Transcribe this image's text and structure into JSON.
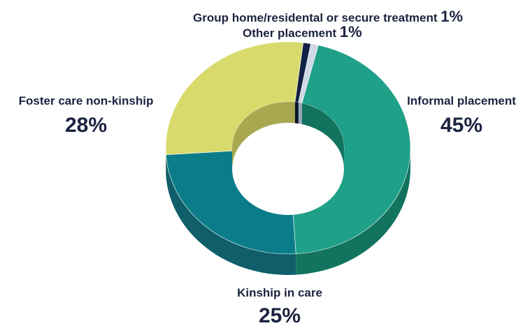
{
  "chart_data": {
    "type": "pie",
    "donut": true,
    "style_3d": true,
    "categories": [
      "Informal placement",
      "Kinship in care",
      "Foster care non-kinship",
      "Other placement",
      "Group home/residental or secure treatment"
    ],
    "values": [
      45,
      25,
      28,
      1,
      1
    ],
    "value_labels": [
      "45%",
      "25%",
      "28%",
      "1%",
      "1%"
    ],
    "colors": [
      "#1fa088",
      "#0b7d8a",
      "#d8da6c",
      "#122044",
      "#cfd8e4"
    ],
    "side_colors": [
      "#12735f",
      "#0f5e6a",
      "#a8a850",
      "#0b1530",
      "#9aa6b6"
    ],
    "legend": "none",
    "grid": false
  }
}
